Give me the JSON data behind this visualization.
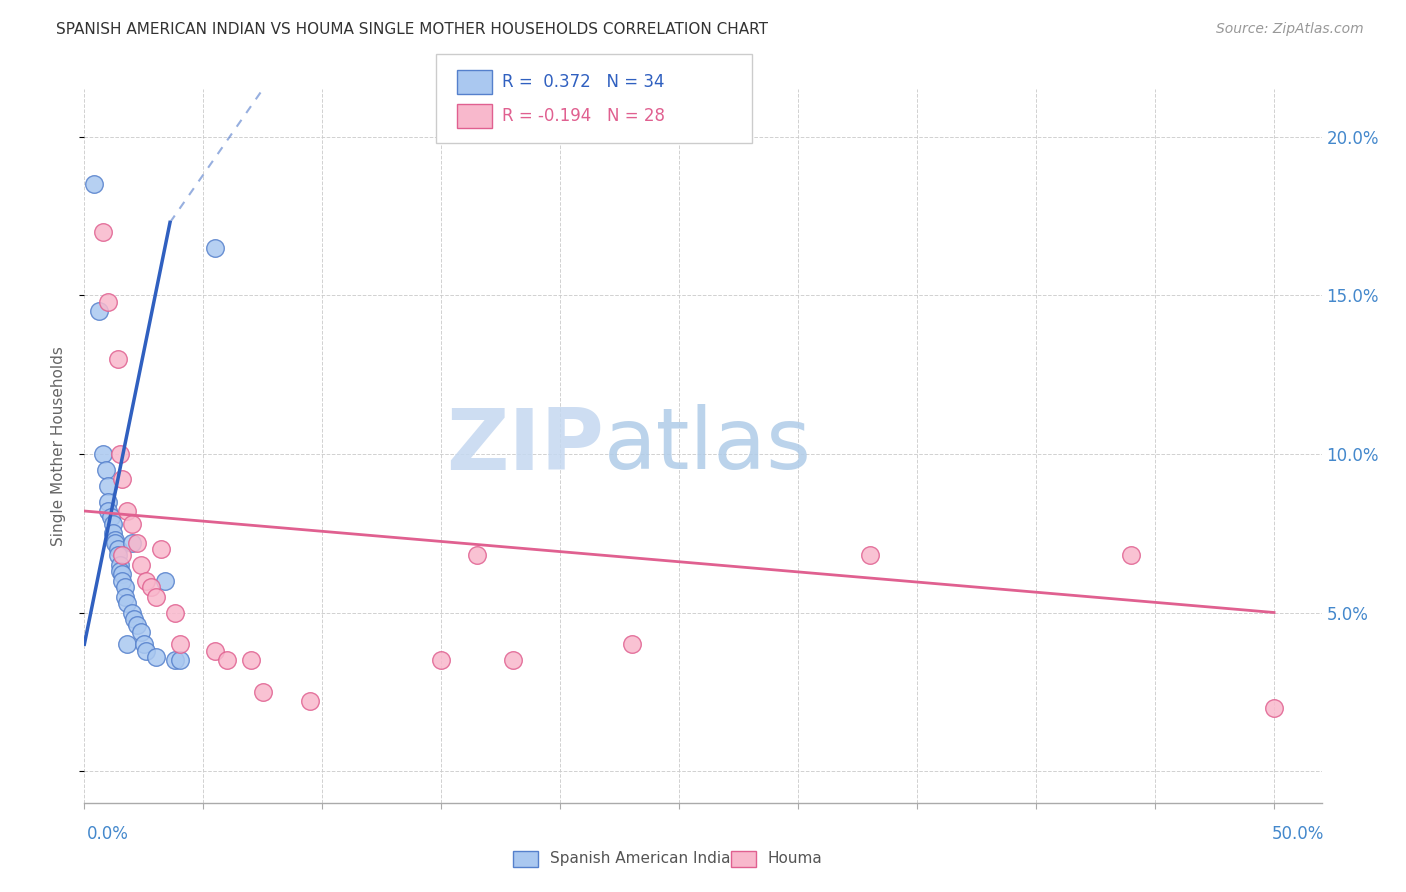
{
  "title": "SPANISH AMERICAN INDIAN VS HOUMA SINGLE MOTHER HOUSEHOLDS CORRELATION CHART",
  "source": "Source: ZipAtlas.com",
  "ylabel": "Single Mother Households",
  "blue_R": 0.372,
  "blue_N": 34,
  "pink_R": -0.194,
  "pink_N": 28,
  "xlim": [
    0.0,
    0.52
  ],
  "ylim": [
    -0.01,
    0.215
  ],
  "yticks": [
    0.0,
    0.05,
    0.1,
    0.15,
    0.2
  ],
  "ytick_labels_right": [
    "",
    "5.0%",
    "10.0%",
    "15.0%",
    "20.0%"
  ],
  "xticks": [
    0.0,
    0.05,
    0.1,
    0.15,
    0.2,
    0.25,
    0.3,
    0.35,
    0.4,
    0.45,
    0.5
  ],
  "blue_fill": "#aac8f0",
  "blue_edge": "#5580cc",
  "pink_fill": "#f8b8cc",
  "pink_edge": "#e06090",
  "blue_line": "#3060c0",
  "pink_line": "#e06090",
  "tick_color": "#4488cc",
  "grid_color": "#cccccc",
  "bg_color": "#ffffff",
  "watermark_zip_color": "#c8ddf5",
  "watermark_atlas_color": "#b8cce8",
  "blue_scatter_x": [
    0.004,
    0.006,
    0.008,
    0.009,
    0.01,
    0.01,
    0.01,
    0.011,
    0.012,
    0.012,
    0.013,
    0.013,
    0.014,
    0.014,
    0.015,
    0.015,
    0.016,
    0.016,
    0.017,
    0.017,
    0.018,
    0.018,
    0.02,
    0.02,
    0.021,
    0.022,
    0.024,
    0.025,
    0.026,
    0.03,
    0.034,
    0.038,
    0.04,
    0.055
  ],
  "blue_scatter_y": [
    0.185,
    0.145,
    0.1,
    0.095,
    0.09,
    0.085,
    0.082,
    0.08,
    0.078,
    0.075,
    0.073,
    0.072,
    0.07,
    0.068,
    0.065,
    0.063,
    0.062,
    0.06,
    0.058,
    0.055,
    0.053,
    0.04,
    0.072,
    0.05,
    0.048,
    0.046,
    0.044,
    0.04,
    0.038,
    0.036,
    0.06,
    0.035,
    0.035,
    0.165
  ],
  "pink_scatter_x": [
    0.008,
    0.01,
    0.014,
    0.015,
    0.016,
    0.016,
    0.018,
    0.02,
    0.022,
    0.024,
    0.026,
    0.028,
    0.03,
    0.032,
    0.038,
    0.04,
    0.055,
    0.06,
    0.07,
    0.075,
    0.095,
    0.15,
    0.165,
    0.18,
    0.23,
    0.33,
    0.44,
    0.5
  ],
  "pink_scatter_y": [
    0.17,
    0.148,
    0.13,
    0.1,
    0.092,
    0.068,
    0.082,
    0.078,
    0.072,
    0.065,
    0.06,
    0.058,
    0.055,
    0.07,
    0.05,
    0.04,
    0.038,
    0.035,
    0.035,
    0.025,
    0.022,
    0.035,
    0.068,
    0.035,
    0.04,
    0.068,
    0.068,
    0.02
  ],
  "blue_line_x0": 0.0,
  "blue_line_y0": 0.04,
  "blue_line_solid_x1": 0.036,
  "blue_line_solid_y1": 0.173,
  "blue_line_dash_x2": 0.075,
  "blue_line_dash_y2": 0.215,
  "pink_line_x0": 0.0,
  "pink_line_y0": 0.082,
  "pink_line_x1": 0.5,
  "pink_line_y1": 0.05
}
